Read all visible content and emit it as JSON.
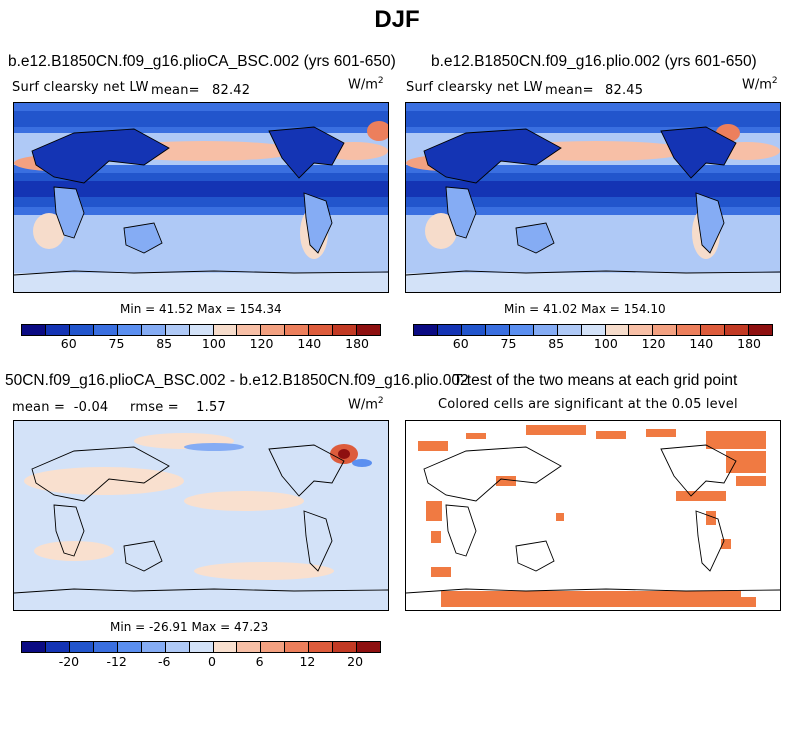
{
  "figure": {
    "title": "DJF"
  },
  "panels": {
    "p1": {
      "case": "b.e12.B1850CN.f09_g16.plioCA_BSC.002 (yrs 601-650)",
      "variable": "Surf clearsky net LW",
      "mean_label": "mean=",
      "mean_value": "82.42",
      "units_base": "W/m",
      "units_exp": "2",
      "minmax": "Min =  41.52 Max = 154.34"
    },
    "p2": {
      "case": "b.e12.B1850CN.f09_g16.plio.002 (yrs 601-650)",
      "variable": "Surf clearsky net LW",
      "mean_label": "mean=",
      "mean_value": "82.45",
      "units_base": "W/m",
      "units_exp": "2",
      "minmax": "Min =  41.02 Max = 154.10"
    },
    "p3": {
      "case": "50CN.f09_g16.plioCA_BSC.002 - b.e12.B1850CN.f09_g16.plio.002",
      "stats": "mean =  -0.04     rmse =    1.57",
      "units_base": "W/m",
      "units_exp": "2",
      "minmax": "Min = -26.91 Max =  47.23"
    },
    "p4": {
      "title": "T-test of the two means at each grid point",
      "subtitle": "Colored cells are significant at the 0.05 level"
    }
  },
  "colorbars": {
    "field": {
      "colors": [
        "#0b0b83",
        "#1434b4",
        "#2255cc",
        "#3a6fe0",
        "#5b8ff0",
        "#85acf4",
        "#afc9f6",
        "#d3e2f8",
        "#f6dccb",
        "#f7bfa6",
        "#f3a181",
        "#ec7f5c",
        "#dd5c3c",
        "#c23a24",
        "#8e1010"
      ],
      "ticks": [
        "60",
        "75",
        "85",
        "100",
        "120",
        "140",
        "180"
      ]
    },
    "diff": {
      "colors": [
        "#0b0b83",
        "#1434b4",
        "#2255cc",
        "#3a6fe0",
        "#5b8ff0",
        "#85acf4",
        "#afc9f6",
        "#d3e2f8",
        "#f9e0cf",
        "#f7bfa6",
        "#f3a181",
        "#ec7f5c",
        "#dd5c3c",
        "#c23a24",
        "#8e1010"
      ],
      "ticks": [
        "-20",
        "-12",
        "-6",
        "0",
        "6",
        "12",
        "20"
      ]
    }
  },
  "colors": {
    "significant": "#f07a42",
    "land_outline": "#000000"
  }
}
